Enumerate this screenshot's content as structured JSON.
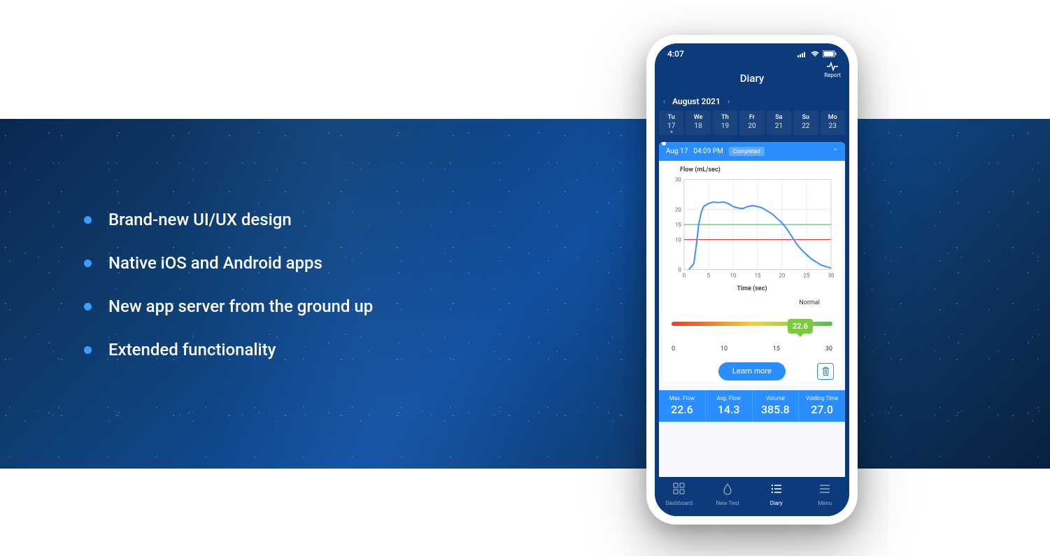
{
  "features": [
    "Brand-new UI/UX design",
    "Native iOS and Android apps",
    "New app server from the ground up",
    "Extended functionality"
  ],
  "colors": {
    "phone_bg": "#0d3a7a",
    "accent": "#2b8eff",
    "feature_bullet": "#3b9eff",
    "bubble": "#7ac943",
    "gradient_start": "#e83e2e",
    "gradient_end": "#4ac050",
    "chart_line": "#3b8eff",
    "ref_green": "#3ac060",
    "ref_red": "#e83e3e"
  },
  "status": {
    "time": "4:07"
  },
  "topbar": {
    "title": "Diary",
    "report": "Report"
  },
  "month": {
    "label": "August 2021"
  },
  "days": [
    {
      "dow": "Tu",
      "num": "17",
      "has_dot": true
    },
    {
      "dow": "We",
      "num": "18",
      "has_dot": false
    },
    {
      "dow": "Th",
      "num": "19",
      "has_dot": false
    },
    {
      "dow": "Fr",
      "num": "20",
      "has_dot": false
    },
    {
      "dow": "Sa",
      "num": "21",
      "has_dot": false
    },
    {
      "dow": "Su",
      "num": "22",
      "has_dot": false
    },
    {
      "dow": "Mo",
      "num": "23",
      "has_dot": false
    }
  ],
  "entry": {
    "date": "Aug 17",
    "time": "04:09 PM",
    "status": "Completed"
  },
  "chart": {
    "type": "line",
    "title": "Flow (mL/sec)",
    "x_title": "Time (sec)",
    "xlim": [
      0,
      30
    ],
    "ylim": [
      0,
      30
    ],
    "xticks": [
      0,
      5,
      10,
      15,
      20,
      25,
      30
    ],
    "yticks": [
      0,
      10,
      15,
      20,
      30
    ],
    "ref_lines": [
      {
        "y": 15,
        "color": "#3ac060"
      },
      {
        "y": 10,
        "color": "#e83e3e"
      }
    ],
    "line_color": "#3b8eff",
    "line_width": 2,
    "grid_color": "#e6e8ec",
    "points": [
      [
        1,
        0
      ],
      [
        2,
        2
      ],
      [
        2.5,
        8
      ],
      [
        3,
        15
      ],
      [
        3.5,
        19
      ],
      [
        4,
        21
      ],
      [
        5,
        22
      ],
      [
        6,
        22.5
      ],
      [
        7,
        22.3
      ],
      [
        8,
        22.5
      ],
      [
        9,
        22
      ],
      [
        10,
        21
      ],
      [
        11,
        20.5
      ],
      [
        12,
        20.3
      ],
      [
        13,
        21
      ],
      [
        14,
        21.3
      ],
      [
        15,
        21
      ],
      [
        16,
        20.5
      ],
      [
        17,
        19.5
      ],
      [
        18,
        18.5
      ],
      [
        19,
        17
      ],
      [
        20,
        15.5
      ],
      [
        21,
        13.5
      ],
      [
        22,
        11
      ],
      [
        23,
        8.5
      ],
      [
        24,
        6.5
      ],
      [
        25,
        5
      ],
      [
        26,
        3.5
      ],
      [
        27,
        2.5
      ],
      [
        28,
        1.5
      ],
      [
        29,
        1
      ],
      [
        30,
        0.5
      ]
    ]
  },
  "range": {
    "label": "Normal",
    "value": "22.6",
    "ticks": [
      "0",
      "10",
      "15",
      "30"
    ],
    "bubble_pos_pct": 80
  },
  "actions": {
    "learn": "Learn more"
  },
  "stats": [
    {
      "label": "Max. Flow",
      "value": "22.6"
    },
    {
      "label": "Avg. Flow",
      "value": "14.3"
    },
    {
      "label": "Volume",
      "value": "385.8"
    },
    {
      "label": "Voiding Time",
      "value": "27.0"
    }
  ],
  "tabs": [
    {
      "label": "Dashboard",
      "icon": "grid"
    },
    {
      "label": "New Test",
      "icon": "drop"
    },
    {
      "label": "Diary",
      "icon": "list",
      "active": true
    },
    {
      "label": "Menu",
      "icon": "menu"
    }
  ]
}
